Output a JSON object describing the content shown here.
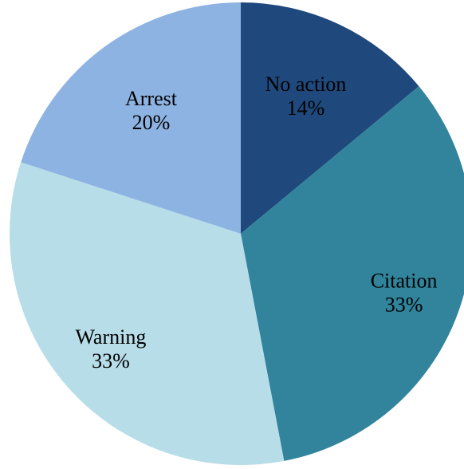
{
  "chart_data": {
    "type": "pie",
    "title": "",
    "slices": [
      {
        "label": "No action",
        "value": 14,
        "display": "14%",
        "color": "#1f497d",
        "text_color": "#000000"
      },
      {
        "label": "Citation",
        "value": 33,
        "display": "33%",
        "color": "#31849b",
        "text_color": "#000000"
      },
      {
        "label": "Warning",
        "value": 33,
        "display": "33%",
        "color": "#b7dde8",
        "text_color": "#000000"
      },
      {
        "label": "Arrest",
        "value": 20,
        "display": "20%",
        "color": "#8db3e2",
        "text_color": "#000000"
      }
    ]
  }
}
